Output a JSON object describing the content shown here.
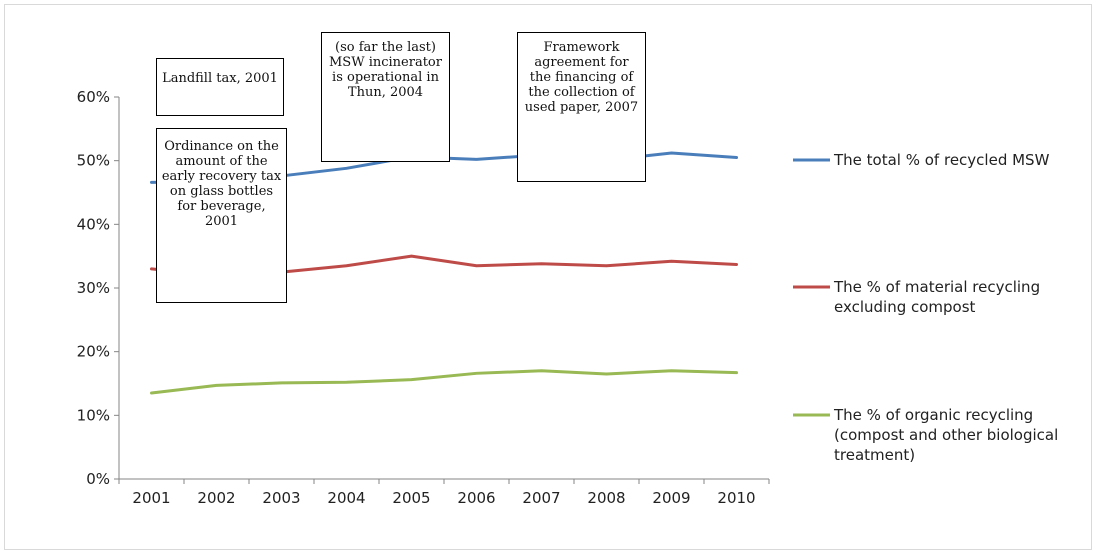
{
  "chart_data": {
    "type": "line",
    "title": "",
    "xlabel": "",
    "ylabel": "",
    "categories": [
      "2001",
      "2002",
      "2003",
      "2004",
      "2005",
      "2006",
      "2007",
      "2008",
      "2009",
      "2010"
    ],
    "ylim": [
      0,
      60
    ],
    "y_ticks": [
      "0%",
      "10%",
      "20%",
      "30%",
      "40%",
      "50%",
      "60%"
    ],
    "grid": false,
    "legend_position": "right",
    "series": [
      {
        "name": "The total % of recycled MSW",
        "label_lines": [
          "The total % of recycled MSW"
        ],
        "color": "#4a7ebb",
        "values": [
          46.6,
          46.7,
          47.6,
          48.8,
          50.6,
          50.2,
          50.9,
          50.1,
          51.2,
          50.5
        ]
      },
      {
        "name": "The % of material recycling excluding compost",
        "label_lines": [
          "The % of material recycling",
          "excluding compost"
        ],
        "color": "#be4b48",
        "values": [
          33.0,
          32.0,
          32.5,
          33.5,
          35.0,
          33.5,
          33.8,
          33.5,
          34.2,
          33.7
        ]
      },
      {
        "name": "The % of organic recycling (compost and other biological treatment)",
        "label_lines": [
          "The % of organic recycling",
          "(compost and other biological",
          "treatment)"
        ],
        "color": "#98b954",
        "values": [
          13.5,
          14.7,
          15.1,
          15.2,
          15.6,
          16.6,
          17.0,
          16.5,
          17.0,
          16.7
        ]
      }
    ],
    "annotations": [
      {
        "text": "Landfill tax, 2001"
      },
      {
        "text": "Ordinance on the amount of the early recovery tax on glass bottles for beverage, 2001"
      },
      {
        "text": "(so far the last) MSW incinerator is operational in Thun, 2004"
      },
      {
        "text": "Framework agreement for the financing of the collection of used paper, 2007"
      }
    ]
  }
}
